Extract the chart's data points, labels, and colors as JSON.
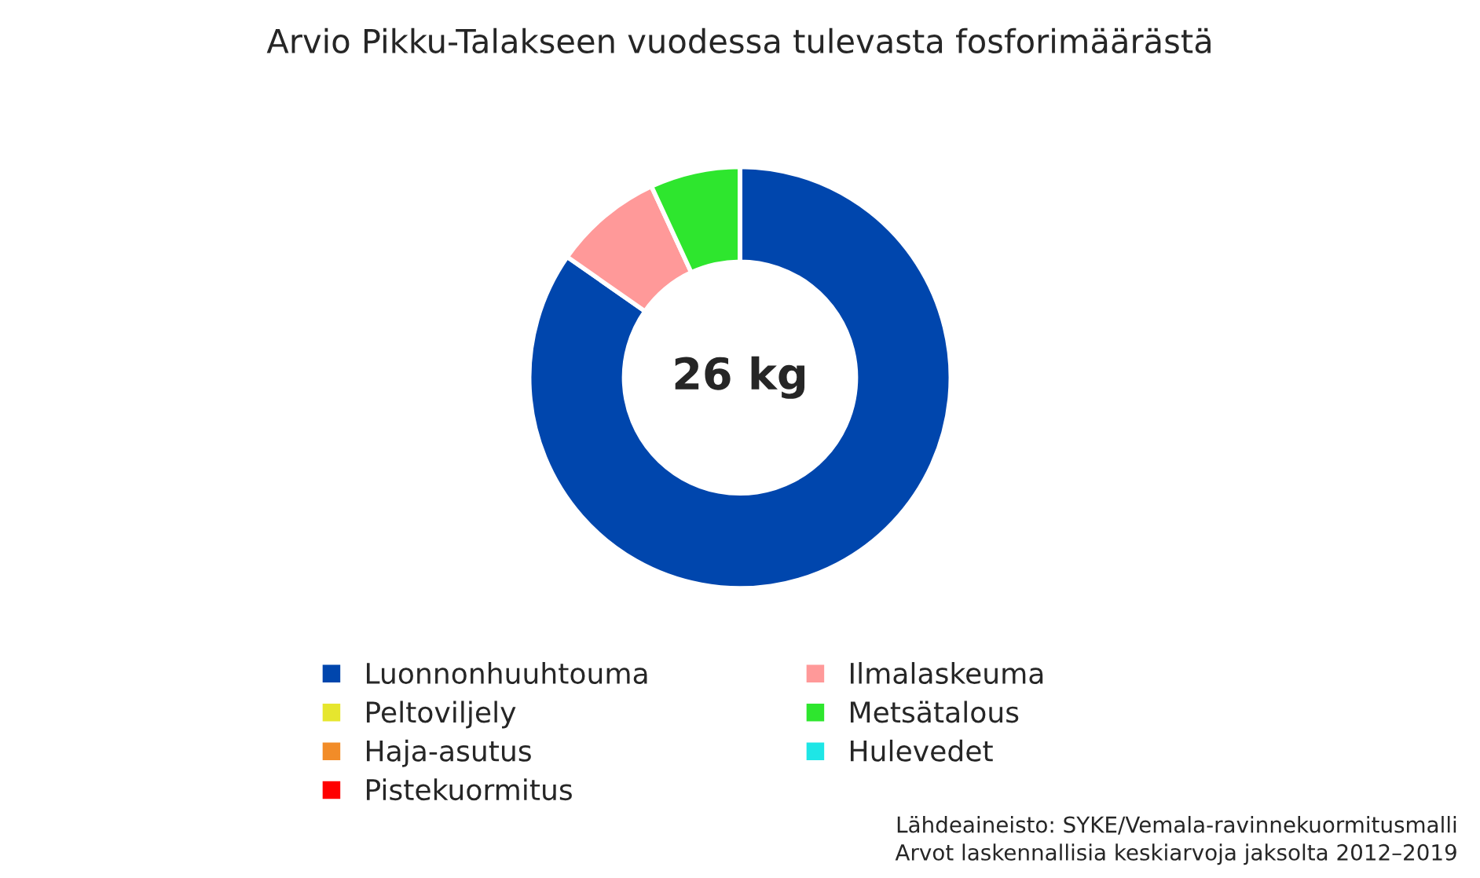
{
  "chart_data": {
    "type": "donut",
    "title": "Arvio Pikku-Talakseen vuodessa tulevasta fosforimäärästä",
    "categories": [
      "Luonnonhuuhtouma",
      "Ilmalaskeuma",
      "Peltoviljely",
      "Metsätalous",
      "Haja-asutus",
      "Hulevedet",
      "Pistekuormitus"
    ],
    "values": [
      84.7,
      8.4,
      0,
      6.9,
      0,
      0,
      0
    ],
    "colors": [
      "#0046ad",
      "#ff9999",
      "#e6e62e",
      "#2ee62e",
      "#f28c28",
      "#1ee6e6",
      "#ff0000"
    ],
    "annotations": [
      "26 kg",
      "Lähdeaineisto: SYKE/Vemala-ravinnekuormitusmalli\nArvot laskennallisia keskiarvoja jaksolta 2012–2019"
    ],
    "legend": "bottom"
  }
}
